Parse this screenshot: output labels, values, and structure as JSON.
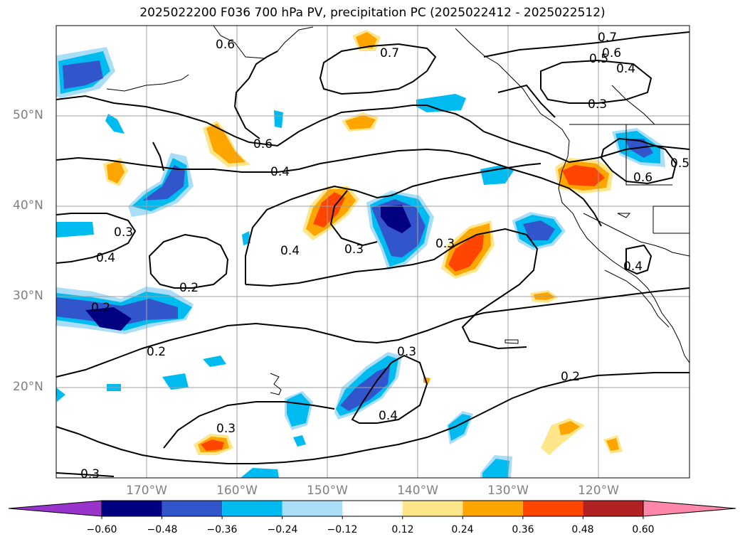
{
  "title": "2025022200 F036 700 hPa PV, precipitation PC (2025022412 - 2025022512)",
  "lat_labels": [
    "50°N",
    "40°N",
    "30°N",
    "20°N"
  ],
  "lon_labels": [
    "170°W",
    "160°W",
    "150°W",
    "140°W",
    "130°W",
    "120°W"
  ],
  "colorbar": {
    "ticks": [
      "−0.60",
      "−0.48",
      "−0.36",
      "−0.24",
      "−0.12",
      "0.12",
      "0.24",
      "0.36",
      "0.48",
      "0.60"
    ],
    "colors": [
      "#9933cc",
      "#000080",
      "#3355cc",
      "#00bbf0",
      "#aaddf8",
      "#ffffff",
      "#ffe68a",
      "#ffa500",
      "#ff4500",
      "#b22222",
      "#ff88aa"
    ]
  },
  "contour_labels": [
    "0.6",
    "0.7",
    "0.7",
    "0.6",
    "0.5",
    "0.4",
    "0.3",
    "0.6",
    "0.4",
    "0.3",
    "0.4",
    "0.3",
    "0.3",
    "0.2",
    "0.2",
    "0.2",
    "0.3",
    "0.2",
    "0.3",
    "0.4",
    "0.3",
    "0.4",
    "0.6",
    "0.5",
    "0.4"
  ],
  "chart_data": {
    "type": "map",
    "title": "2025022200 F036 700 hPa PV, precipitation PC (2025022412 - 2025022512)",
    "lon_range": [
      -180,
      -110
    ],
    "lat_range": [
      10,
      60
    ],
    "variables": [
      "700 hPa PV (contours)",
      "precipitation PC (shaded)"
    ],
    "contour_levels_labeled": [
      0.2,
      0.3,
      0.4,
      0.5,
      0.6,
      0.7
    ],
    "colorbar_levels": [
      -0.6,
      -0.48,
      -0.36,
      -0.24,
      -0.12,
      0.12,
      0.24,
      0.36,
      0.48,
      0.6
    ],
    "grid": true
  }
}
